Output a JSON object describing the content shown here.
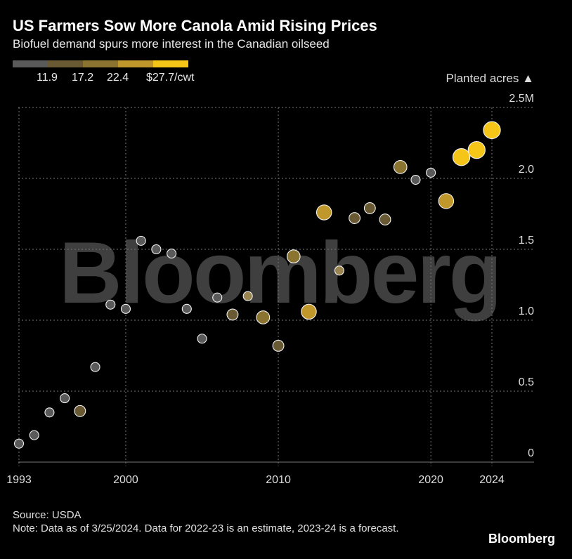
{
  "chart_data": {
    "type": "scatter",
    "title": "US Farmers Sow More Canola Amid Rising Prices",
    "subtitle": "Biofuel demand spurs more interest in the Canadian oilseed",
    "y_axis_title": "Planted acres",
    "color_scale": {
      "labels": [
        "11.9",
        "17.2",
        "22.4",
        "$27.7/cwt"
      ],
      "colors": [
        "#5a5a5a",
        "#6a5a34",
        "#8a7430",
        "#c0972a",
        "#f5c518"
      ]
    },
    "xlim": [
      1993,
      2026
    ],
    "x_ticks": [
      "1993",
      "2000",
      "2010",
      "2020",
      "2024"
    ],
    "ylim": [
      0,
      2.5
    ],
    "y_ticks": [
      "0",
      "0.5",
      "1.0",
      "1.5",
      "2.0",
      "2.5M"
    ],
    "points": [
      {
        "x": 1993,
        "y": 0.13,
        "color": "#5a5a5a"
      },
      {
        "x": 1994,
        "y": 0.19,
        "color": "#5a5a5a"
      },
      {
        "x": 1995,
        "y": 0.35,
        "color": "#5a5a5a"
      },
      {
        "x": 1996,
        "y": 0.45,
        "color": "#5a5a5a"
      },
      {
        "x": 1997,
        "y": 0.36,
        "color": "#6a5a34"
      },
      {
        "x": 1998,
        "y": 0.67,
        "color": "#5a5a5a"
      },
      {
        "x": 1999,
        "y": 1.11,
        "color": "#5a5a5a"
      },
      {
        "x": 2000,
        "y": 1.08,
        "color": "#5a5a5a"
      },
      {
        "x": 2001,
        "y": 1.56,
        "color": "#5a5a5a"
      },
      {
        "x": 2002,
        "y": 1.5,
        "color": "#5a5a5a"
      },
      {
        "x": 2003,
        "y": 1.47,
        "color": "#5a5a5a"
      },
      {
        "x": 2004,
        "y": 1.08,
        "color": "#5a5a5a"
      },
      {
        "x": 2005,
        "y": 0.87,
        "color": "#5a5a5a"
      },
      {
        "x": 2006,
        "y": 1.16,
        "color": "#5a5a5a"
      },
      {
        "x": 2007,
        "y": 1.04,
        "color": "#6a5a34"
      },
      {
        "x": 2008,
        "y": 1.17,
        "color": "#9a8450"
      },
      {
        "x": 2009,
        "y": 1.02,
        "color": "#8a7430"
      },
      {
        "x": 2010,
        "y": 0.82,
        "color": "#6a5a34"
      },
      {
        "x": 2011,
        "y": 1.45,
        "color": "#8a7430"
      },
      {
        "x": 2012,
        "y": 1.06,
        "color": "#c0972a"
      },
      {
        "x": 2013,
        "y": 1.76,
        "color": "#c0972a"
      },
      {
        "x": 2014,
        "y": 1.35,
        "color": "#9a8450"
      },
      {
        "x": 2015,
        "y": 1.72,
        "color": "#6a5a34"
      },
      {
        "x": 2016,
        "y": 1.79,
        "color": "#6a5a34"
      },
      {
        "x": 2017,
        "y": 1.71,
        "color": "#6a5a34"
      },
      {
        "x": 2018,
        "y": 2.08,
        "color": "#8a7430"
      },
      {
        "x": 2019,
        "y": 1.99,
        "color": "#5a5a5a"
      },
      {
        "x": 2020,
        "y": 2.04,
        "color": "#5a5a5a"
      },
      {
        "x": 2021,
        "y": 1.84,
        "color": "#c0972a"
      },
      {
        "x": 2022,
        "y": 2.15,
        "color": "#f5c518"
      },
      {
        "x": 2023,
        "y": 2.2,
        "color": "#f5c518"
      },
      {
        "x": 2024,
        "y": 2.34,
        "color": "#f5c518"
      }
    ]
  },
  "footer": {
    "source": "Source: USDA",
    "note": "Note: Data as of 3/25/2024. Data for 2022-23 is an estimate, 2023-24 is a forecast."
  },
  "brand": "Bloomberg",
  "watermark": "Bloomberg"
}
